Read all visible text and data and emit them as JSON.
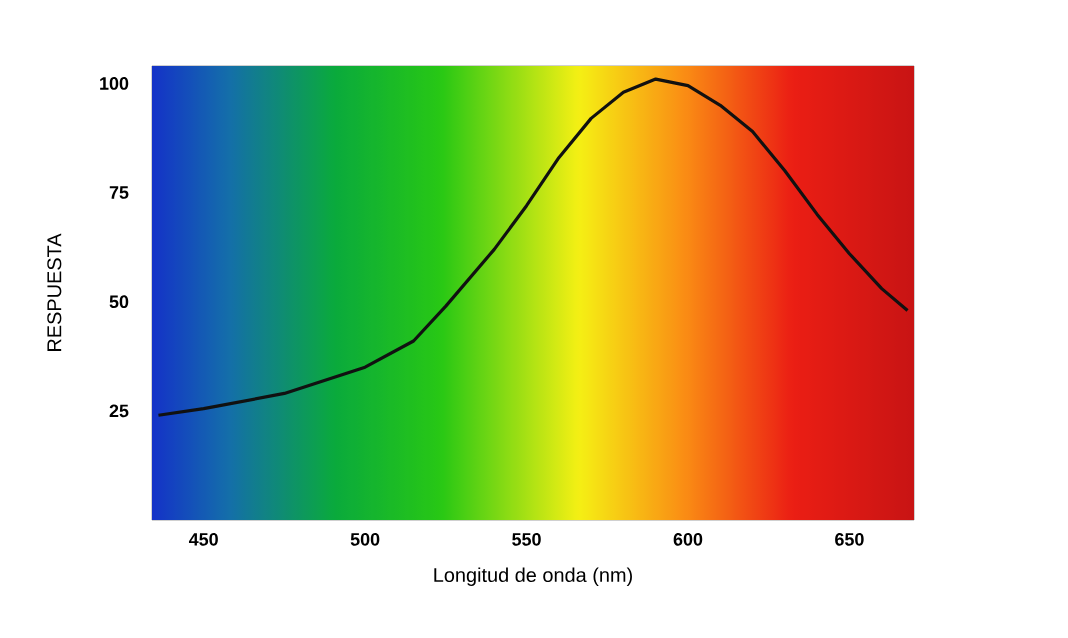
{
  "chart_data": {
    "type": "line",
    "xlabel": "Longitud de onda (nm)",
    "ylabel": "RESPUESTA",
    "x": [
      436,
      450,
      475,
      500,
      515,
      525,
      540,
      550,
      560,
      570,
      580,
      590,
      600,
      610,
      620,
      630,
      640,
      650,
      660,
      668
    ],
    "values": [
      24,
      25.5,
      29,
      35,
      41,
      49,
      62,
      72,
      83,
      92,
      98,
      101,
      99.5,
      95,
      89,
      80,
      70,
      61,
      53,
      48
    ],
    "color": "#111111",
    "xlim": [
      434,
      670
    ],
    "ylim": [
      0,
      104
    ],
    "xticks": [
      450,
      500,
      550,
      600,
      650
    ],
    "yticks": [
      25,
      50,
      75,
      100
    ]
  }
}
